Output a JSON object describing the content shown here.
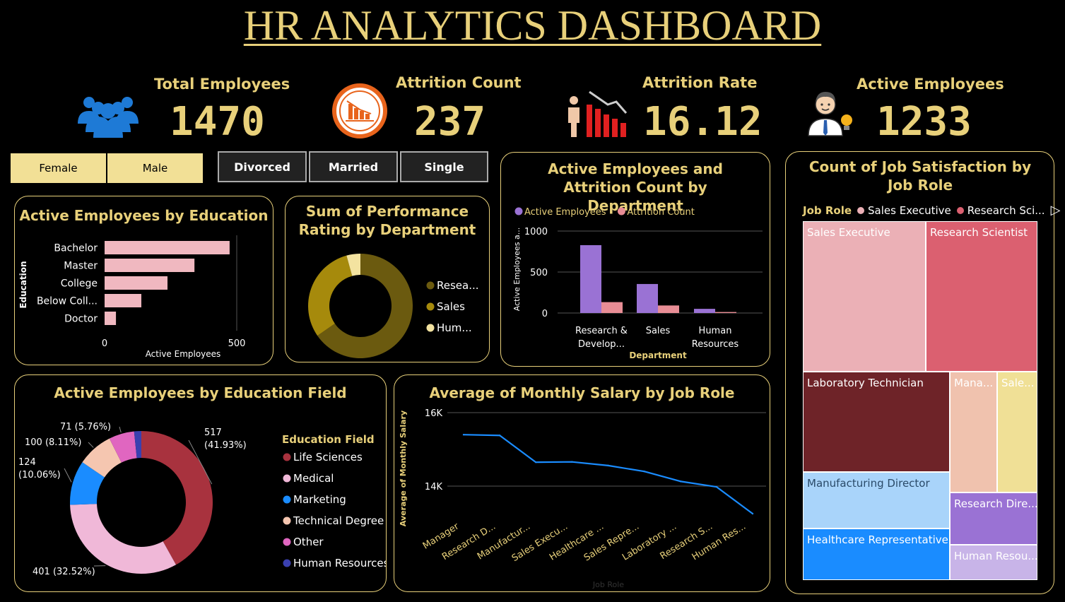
{
  "title": "HR ANALYTICS DASHBOARD",
  "kpis": {
    "total_employees": {
      "label": "Total Employees",
      "value": "1470"
    },
    "attrition_count": {
      "label": "Attrition Count",
      "value": "237"
    },
    "attrition_rate": {
      "label": "Attrition Rate",
      "value": "16.12"
    },
    "active_employees": {
      "label": "Active Employees",
      "value": "1233"
    }
  },
  "slicers": {
    "gender": [
      "Female",
      "Male"
    ],
    "marital": [
      "Divorced",
      "Married",
      "Single"
    ]
  },
  "colors": {
    "gold": "#e8d07a",
    "active_purple": "#9a72d4",
    "attrition_pink": "#e88d95"
  },
  "chart_data": [
    {
      "id": "education",
      "type": "bar",
      "orientation": "horizontal",
      "title": "Active Employees by Education",
      "xlabel": "Active Employees",
      "ylabel": "Education",
      "categories": [
        "Bachelor",
        "Master",
        "College",
        "Below Coll...",
        "Doctor"
      ],
      "values": [
        473,
        340,
        238,
        139,
        43
      ],
      "xlim": [
        0,
        500
      ],
      "xticks": [
        "0",
        "500"
      ],
      "color": "#f0b8c0"
    },
    {
      "id": "performance",
      "type": "pie",
      "donut": true,
      "title": "Sum of Performance Rating by Department",
      "categories": [
        "Resea...",
        "Sales",
        "Hum..."
      ],
      "values": [
        961,
        446,
        63
      ],
      "colors": [
        "#6b5a0f",
        "#a68a0c",
        "#f3e3a0"
      ]
    },
    {
      "id": "department",
      "type": "bar",
      "title": "Active Employees and Attrition Count by Department",
      "xlabel": "Department",
      "ylabel": "Active Employees a...",
      "categories": [
        "Research & Develop...",
        "Sales",
        "Human Resources"
      ],
      "series": [
        {
          "name": "Active Employees",
          "values": [
            828,
            354,
            51
          ]
        },
        {
          "name": "Attrition Count",
          "values": [
            133,
            92,
            12
          ]
        }
      ],
      "ylim": [
        0,
        1000
      ],
      "yticks": [
        "0",
        "500",
        "1000"
      ]
    },
    {
      "id": "job_satisfaction",
      "type": "treemap",
      "title": "Count of Job Satisfaction by Job Role",
      "legend_title": "Job Role",
      "legend": [
        "Sales Executive",
        "Research Sci..."
      ],
      "categories": [
        "Sales Executive",
        "Research Scientist",
        "Laboratory Technician",
        "Mana...",
        "Sale...",
        "Manufacturing Director",
        "Research Dire...",
        "Healthcare Representative",
        "Human Resou..."
      ],
      "colors": [
        "#ebb0b6",
        "#db6070",
        "#6e2328",
        "#f0c2ae",
        "#f0e096",
        "#a9d4fa",
        "#9a72d4",
        "#1a8cff",
        "#c8b4e8"
      ]
    },
    {
      "id": "education_field",
      "type": "pie",
      "donut": true,
      "title": "Active Employees by Education Field",
      "legend_title": "Education Field",
      "categories": [
        "Life Sciences",
        "Medical",
        "Marketing",
        "Technical Degree",
        "Other",
        "Human Resources"
      ],
      "values": [
        517,
        401,
        124,
        100,
        71,
        20
      ],
      "labels": [
        "517 (41.93%)",
        "401 (32.52%)",
        "124 (10.06%)",
        "100 (8.11%)",
        "71 (5.76%)",
        ""
      ],
      "colors": [
        "#a8323e",
        "#f0b8d8",
        "#1a8cff",
        "#f5c6b0",
        "#e066c0",
        "#3a40b0"
      ]
    },
    {
      "id": "salary",
      "type": "line",
      "title": "Average of Monthly Salary by Job Role",
      "xlabel": "Job Role",
      "ylabel": "Average of Monthly Salary",
      "categories": [
        "Manager",
        "Research D...",
        "Manufactur...",
        "Sales Execu...",
        "Healthcare ...",
        "Sales Repre...",
        "Laboratory ...",
        "Research S...",
        "Human Res..."
      ],
      "values": [
        15400,
        15380,
        14650,
        14660,
        14560,
        14400,
        14130,
        13980,
        13250
      ],
      "ylim": [
        12700,
        16000
      ],
      "yticks": [
        "14K",
        "16K"
      ],
      "color": "#1a8cff"
    }
  ]
}
